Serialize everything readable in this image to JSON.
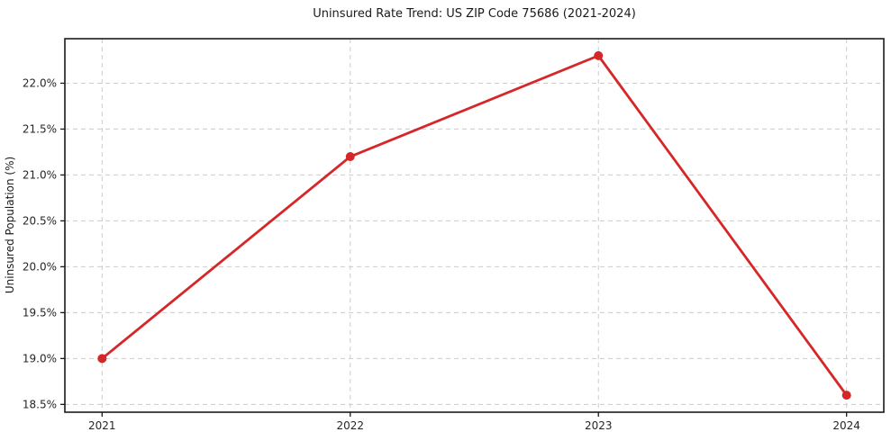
{
  "chart_data": {
    "type": "line",
    "title": "Uninsured Rate Trend: US ZIP Code 75686 (2021-2024)",
    "xlabel": "",
    "ylabel": "Uninsured Population (%)",
    "x": [
      2021,
      2022,
      2023,
      2024
    ],
    "xtick_labels": [
      "2021",
      "2022",
      "2023",
      "2024"
    ],
    "values": [
      19.0,
      21.2,
      22.3,
      18.6
    ],
    "yticks": [
      18.5,
      19.0,
      19.5,
      20.0,
      20.5,
      21.0,
      21.5,
      22.0
    ],
    "ytick_labels": [
      "18.5%",
      "19.0%",
      "19.5%",
      "20.0%",
      "20.5%",
      "21.0%",
      "21.5%",
      "22.0%"
    ],
    "xlim": [
      2020.85,
      2024.15
    ],
    "ylim": [
      18.415,
      22.485
    ],
    "grid": "dashed",
    "legend": "none",
    "marker": "circle",
    "colors": {
      "line": "#d62728",
      "grid": "#cccccc",
      "spine": "#1a1a1a",
      "background": "#ffffff"
    }
  }
}
